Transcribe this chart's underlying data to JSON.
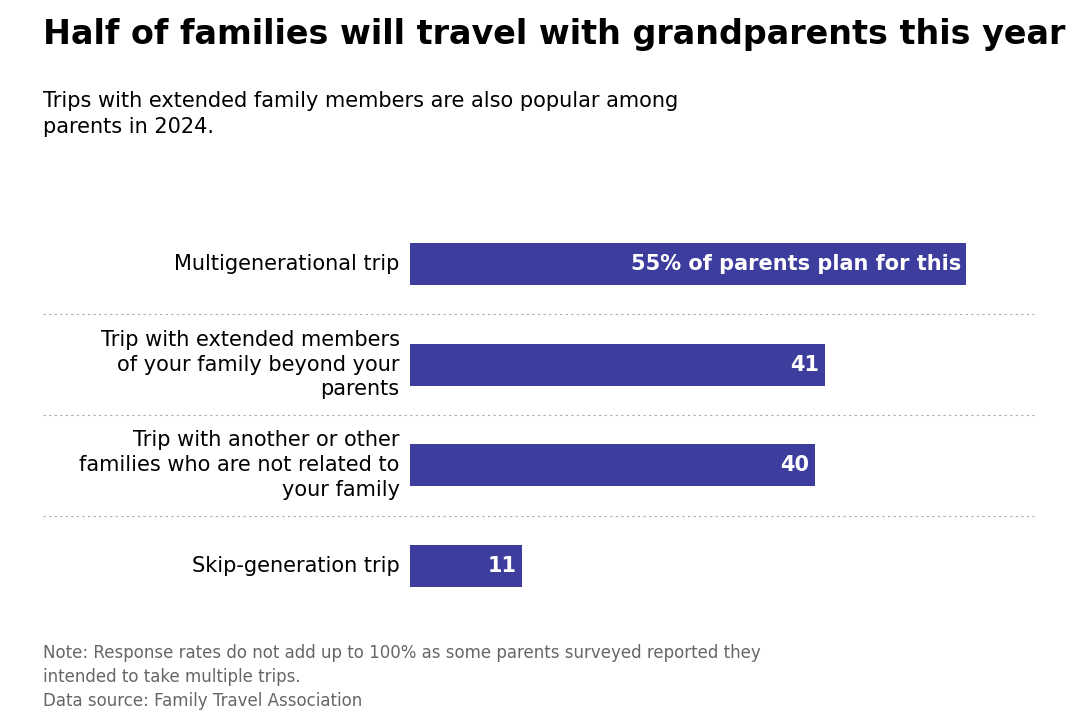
{
  "title": "Half of families will travel with grandparents this year",
  "subtitle": "Trips with extended family members are also popular among\nparents in 2024.",
  "categories": [
    "Multigenerational trip",
    "Trip with extended members\nof your family beyond your\nparents",
    "Trip with another or other\nfamilies who are not related to\nyour family",
    "Skip-generation trip"
  ],
  "values": [
    55,
    41,
    40,
    11
  ],
  "bar_color": "#3d3d9e",
  "bar_labels": [
    "55% of parents plan for this",
    "41",
    "40",
    "11"
  ],
  "note": "Note: Response rates do not add up to 100% as some parents surveyed reported they\nintended to take multiple trips.",
  "source": "Data source: Family Travel Association",
  "background_color": "#ffffff",
  "text_color": "#000000",
  "note_color": "#666666",
  "title_fontsize": 24,
  "subtitle_fontsize": 15,
  "label_fontsize": 15,
  "bar_label_fontsize": 15,
  "note_fontsize": 12,
  "xlim": [
    0,
    62
  ]
}
